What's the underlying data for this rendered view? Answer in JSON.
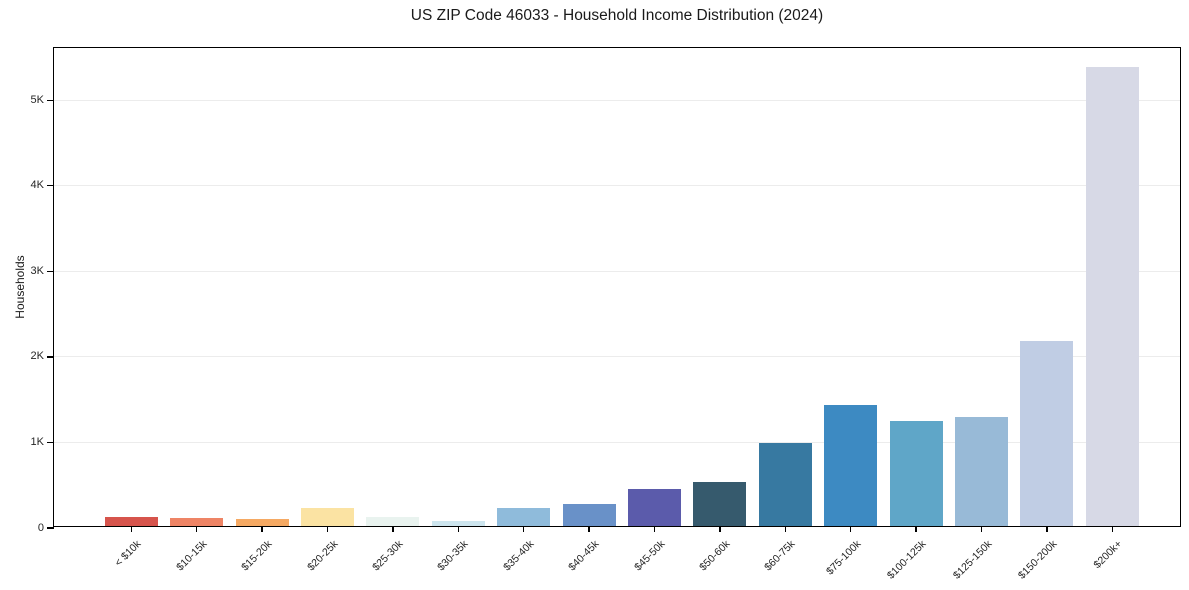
{
  "chart_data": {
    "type": "bar",
    "title": "US ZIP Code 46033 - Household Income Distribution (2024)",
    "xlabel": "",
    "ylabel": "Households",
    "categories": [
      "< $10k",
      "$10-15k",
      "$15-20k",
      "$20-25k",
      "$25-30k",
      "$30-35k",
      "$35-40k",
      "$40-45k",
      "$45-50k",
      "$50-60k",
      "$60-75k",
      "$75-100k",
      "$100-125k",
      "$125-150k",
      "$150-200k",
      "$200k+"
    ],
    "values": [
      110,
      95,
      80,
      210,
      100,
      55,
      205,
      255,
      435,
      520,
      975,
      1410,
      1230,
      1270,
      2160,
      5365
    ],
    "bar_colors": [
      "#d6544c",
      "#ee8465",
      "#f5a963",
      "#fbe3a3",
      "#e9f3ef",
      "#cde5ee",
      "#8fbbdb",
      "#6991c8",
      "#5b5bab",
      "#365a6d",
      "#3779a1",
      "#3d8ac2",
      "#5fa6c8",
      "#98bad7",
      "#c0cde4",
      "#d7d9e6"
    ],
    "y_ticks": [
      {
        "value": 0,
        "label": "0"
      },
      {
        "value": 1000,
        "label": "1K"
      },
      {
        "value": 2000,
        "label": "2K"
      },
      {
        "value": 3000,
        "label": "3K"
      },
      {
        "value": 4000,
        "label": "4K"
      },
      {
        "value": 5000,
        "label": "5K"
      }
    ],
    "ylim": [
      0,
      5610
    ],
    "grid": "horizontal",
    "legend": "none",
    "colors": {
      "background": "#ffffff",
      "grid": "#ececec",
      "axis": "#000000",
      "text": "#262626"
    }
  }
}
